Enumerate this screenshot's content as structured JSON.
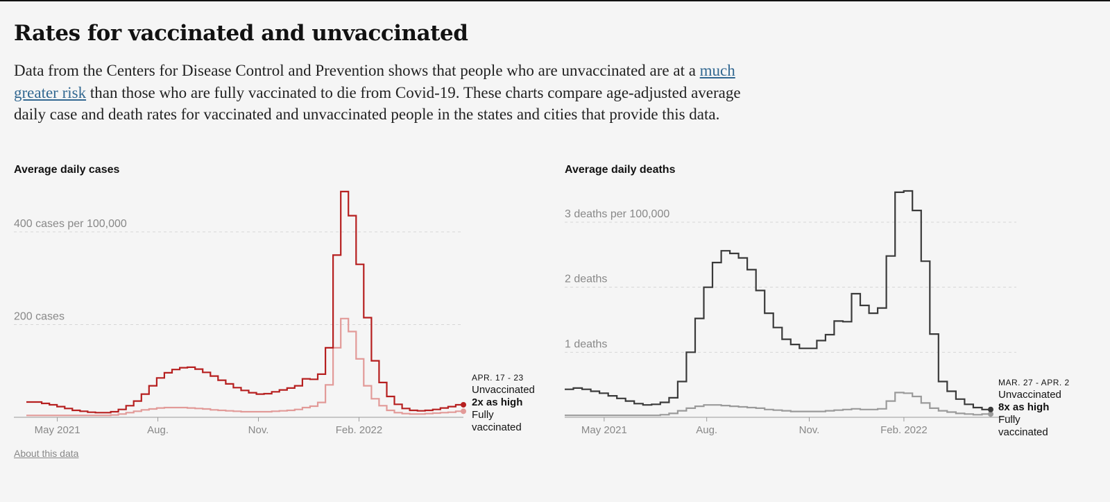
{
  "headline": "Rates for vaccinated and unvaccinated",
  "intro": {
    "before": "Data from the Centers for Disease Control and Prevention shows that people who are unvaccinated are at a ",
    "link": "much greater risk",
    "after": " than those who are fully vaccinated to die from Covid-19. These charts compare age-adjusted average daily case and death rates for vaccinated and unvaccinated people in the states and cities that provide this data."
  },
  "about_link": "About this data",
  "colors": {
    "cases_unvaccinated": "#b61f1f",
    "cases_vaccinated": "#e29a98",
    "deaths_unvaccinated": "#3a3a3a",
    "deaths_vaccinated": "#9a9a9a",
    "grid": "#d6d6d6",
    "axis_text": "#888888"
  },
  "chart_data": [
    {
      "type": "line",
      "step": true,
      "title": "Average daily cases",
      "ylabel": "cases per 100,000",
      "ylim": [
        0,
        480
      ],
      "y_ticks": [
        {
          "value": 200,
          "label": "200 cases"
        },
        {
          "value": 400,
          "label": "400 cases per 100,000"
        }
      ],
      "x_ticks": [
        {
          "value": 4,
          "label": "May 2021"
        },
        {
          "value": 17,
          "label": "Aug."
        },
        {
          "value": 30,
          "label": "Nov."
        },
        {
          "value": 43,
          "label": "Feb. 2022"
        }
      ],
      "x_range": [
        0,
        56.5
      ],
      "x_unit": "weeks",
      "annotation": {
        "date": "APR. 17 - 23",
        "top": "Unvaccinated",
        "ratio": "2x as high",
        "bottom1": "Fully",
        "bottom2": "vaccinated"
      },
      "series": [
        {
          "name": "Unvaccinated",
          "values": [
            33,
            33,
            30,
            27,
            23,
            19,
            15,
            13,
            11,
            10,
            10,
            12,
            17,
            25,
            35,
            50,
            68,
            85,
            96,
            103,
            107,
            108,
            104,
            97,
            89,
            80,
            72,
            64,
            58,
            53,
            50,
            51,
            55,
            59,
            63,
            68,
            83,
            82,
            93,
            150,
            350,
            487,
            435,
            330,
            215,
            122,
            75,
            45,
            28,
            19,
            15,
            14,
            15,
            17,
            20,
            23,
            27
          ]
        },
        {
          "name": "Fully vaccinated",
          "values": [
            4,
            4,
            4,
            4,
            4,
            4,
            4,
            4,
            4,
            4,
            4,
            5,
            7,
            10,
            13,
            16,
            18,
            20,
            21,
            21,
            21,
            20,
            19,
            18,
            16,
            15,
            14,
            13,
            12,
            12,
            12,
            12,
            13,
            14,
            15,
            17,
            21,
            24,
            32,
            70,
            150,
            213,
            185,
            126,
            68,
            40,
            25,
            15,
            10,
            8,
            7,
            7,
            8,
            9,
            10,
            11,
            13
          ]
        }
      ]
    },
    {
      "type": "line",
      "step": true,
      "title": "Average daily deaths",
      "ylabel": "deaths per 100,000",
      "ylim": [
        0,
        3.5
      ],
      "y_ticks": [
        {
          "value": 1,
          "label": "1 deaths"
        },
        {
          "value": 2,
          "label": "2 deaths"
        },
        {
          "value": 3,
          "label": "3 deaths per 100,000"
        }
      ],
      "x_ticks": [
        {
          "value": 5,
          "label": "May 2021"
        },
        {
          "value": 18,
          "label": "Aug."
        },
        {
          "value": 31,
          "label": "Nov."
        },
        {
          "value": 43,
          "label": "Feb. 2022"
        }
      ],
      "x_range": [
        0,
        54
      ],
      "x_unit": "weeks",
      "annotation": {
        "date": "MAR. 27 - APR. 2",
        "top": "Unvaccinated",
        "ratio": "8x as high",
        "bottom1": "Fully",
        "bottom2": "vaccinated"
      },
      "series": [
        {
          "name": "Unvaccinated",
          "values": [
            0.43,
            0.45,
            0.43,
            0.4,
            0.37,
            0.33,
            0.29,
            0.25,
            0.21,
            0.19,
            0.2,
            0.23,
            0.3,
            0.55,
            1.0,
            1.52,
            2.0,
            2.38,
            2.56,
            2.52,
            2.45,
            2.27,
            1.95,
            1.6,
            1.38,
            1.2,
            1.12,
            1.06,
            1.06,
            1.18,
            1.27,
            1.48,
            1.47,
            1.9,
            1.72,
            1.6,
            1.68,
            2.48,
            3.46,
            3.48,
            3.18,
            2.4,
            1.28,
            0.55,
            0.4,
            0.28,
            0.2,
            0.15,
            0.12
          ]
        },
        {
          "name": "Fully vaccinated",
          "values": [
            0.03,
            0.03,
            0.03,
            0.03,
            0.03,
            0.03,
            0.03,
            0.03,
            0.03,
            0.03,
            0.03,
            0.04,
            0.06,
            0.1,
            0.14,
            0.17,
            0.19,
            0.19,
            0.18,
            0.17,
            0.16,
            0.15,
            0.14,
            0.12,
            0.11,
            0.1,
            0.09,
            0.09,
            0.09,
            0.09,
            0.1,
            0.11,
            0.12,
            0.13,
            0.12,
            0.12,
            0.13,
            0.25,
            0.38,
            0.37,
            0.32,
            0.22,
            0.14,
            0.1,
            0.08,
            0.06,
            0.05,
            0.04,
            0.05
          ]
        }
      ]
    }
  ]
}
